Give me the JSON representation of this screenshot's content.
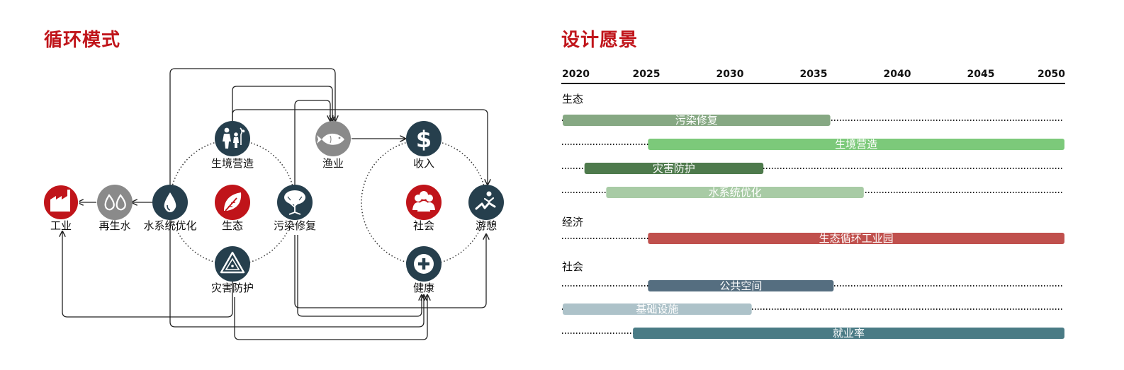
{
  "left_title": "循环模式",
  "right_title": "设计愿景",
  "colors": {
    "title": "#c0141a",
    "node_dark": "#263f4d",
    "node_gray": "#8a8a8a",
    "node_red": "#c0141a"
  },
  "nodes": {
    "industry": {
      "label": "工业",
      "icon": "factory-icon"
    },
    "recycled_water": {
      "label": "再生水",
      "icon": "water-drops-icon"
    },
    "water_system": {
      "label": "水系统优化",
      "icon": "water-drop-icon"
    },
    "habitat": {
      "label": "生境营造",
      "icon": "people-planting-icon"
    },
    "ecology": {
      "label": "生态",
      "icon": "leaf-icon"
    },
    "disaster": {
      "label": "灾害防护",
      "icon": "warning-icon"
    },
    "remediation": {
      "label": "污染修复",
      "icon": "tree-icon"
    },
    "fishery": {
      "label": "渔业",
      "icon": "fish-icon"
    },
    "income": {
      "label": "收入",
      "icon": "dollar-icon"
    },
    "society": {
      "label": "社会",
      "icon": "group-icon"
    },
    "recreation": {
      "label": "游憩",
      "icon": "recreation-icon"
    },
    "health": {
      "label": "健康",
      "icon": "plus-icon"
    }
  },
  "timeline": {
    "years": [
      "2020",
      "2025",
      "2030",
      "2035",
      "2040",
      "2045",
      "2050"
    ],
    "categories": {
      "ecology": "生态",
      "economy": "经济",
      "society": "社会"
    },
    "bars": [
      {
        "label": "污染修复",
        "start": 2020,
        "end": 2036,
        "color": "#86a883"
      },
      {
        "label": "生境营造",
        "start": 2025.1,
        "end": 2050,
        "color": "#7cc97a"
      },
      {
        "label": "灾害防护",
        "start": 2021.3,
        "end": 2032,
        "color": "#4e7a4c"
      },
      {
        "label": "水系统优化",
        "start": 2022.6,
        "end": 2038,
        "color": "#a8cba5"
      },
      {
        "label": "生态循环工业园",
        "start": 2025.1,
        "end": 2050,
        "color": "#c0504d"
      },
      {
        "label": "公共空间",
        "start": 2025.1,
        "end": 2036.2,
        "color": "#556e80"
      },
      {
        "label": "基础设施",
        "start": 2020,
        "end": 2031.3,
        "color": "#adc2c9"
      },
      {
        "label": "就业率",
        "start": 2024.2,
        "end": 2050,
        "color": "#4a7b85"
      }
    ]
  }
}
